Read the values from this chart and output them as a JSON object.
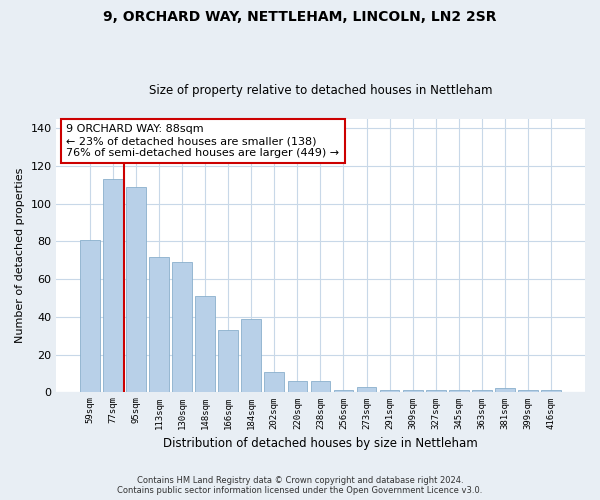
{
  "title": "9, ORCHARD WAY, NETTLEHAM, LINCOLN, LN2 2SR",
  "subtitle": "Size of property relative to detached houses in Nettleham",
  "xlabel": "Distribution of detached houses by size in Nettleham",
  "ylabel": "Number of detached properties",
  "bins": [
    "59sqm",
    "77sqm",
    "95sqm",
    "113sqm",
    "130sqm",
    "148sqm",
    "166sqm",
    "184sqm",
    "202sqm",
    "220sqm",
    "238sqm",
    "256sqm",
    "273sqm",
    "291sqm",
    "309sqm",
    "327sqm",
    "345sqm",
    "363sqm",
    "381sqm",
    "399sqm",
    "416sqm"
  ],
  "values": [
    81,
    113,
    109,
    72,
    69,
    51,
    33,
    39,
    11,
    6,
    6,
    1,
    3,
    1,
    1,
    1,
    1,
    1,
    2,
    1,
    1
  ],
  "bar_color": "#b8d0e8",
  "bar_edge_color": "#8ab0cc",
  "vline_color": "#cc0000",
  "annotation_text": "9 ORCHARD WAY: 88sqm\n← 23% of detached houses are smaller (138)\n76% of semi-detached houses are larger (449) →",
  "annotation_box_facecolor": "#ffffff",
  "annotation_box_edgecolor": "#cc0000",
  "ylim": [
    0,
    145
  ],
  "yticks": [
    0,
    20,
    40,
    60,
    80,
    100,
    120,
    140
  ],
  "footer_line1": "Contains HM Land Registry data © Crown copyright and database right 2024.",
  "footer_line2": "Contains public sector information licensed under the Open Government Licence v3.0.",
  "bg_color": "#e8eef4",
  "plot_bg_color": "#ffffff",
  "grid_color": "#c8d8e8",
  "vline_x": 1.5
}
